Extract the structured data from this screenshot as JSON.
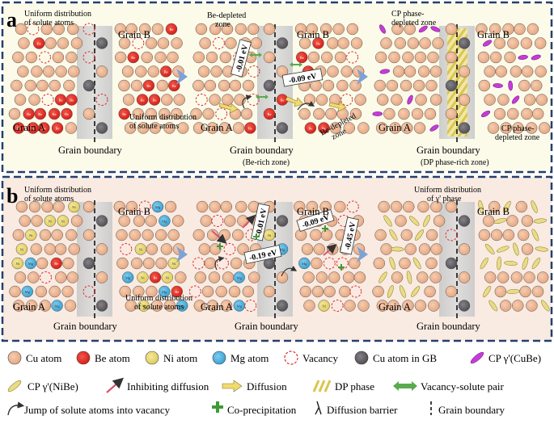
{
  "panel_a": {
    "label": "a",
    "s1": {
      "title": "Uniform distribution\nof solute atoms",
      "grain_a": "Grain A",
      "grain_b": "Grain B",
      "gb": "Grain boundary",
      "note": "Uniform distribution\nof solute atoms"
    },
    "s2": {
      "zone_top": "Be-depleted\nzone",
      "grain_a": "Grain A",
      "grain_b": "Grain B",
      "gb": "Grain boundary",
      "gb_sub": "(Be-rich zone)",
      "zone_right": "Be-depleted\nzone",
      "energy1": "-0.01 eV",
      "energy2": "-0.09 eV"
    },
    "s3": {
      "zone_top": "CP phase-\ndepleted zone",
      "grain_a": "Grain A",
      "grain_b": "Grain B",
      "gb": "Grain boundary",
      "gb_sub": "(DP phase-rich zone)",
      "zone_right": "CP phase-\ndepleted zone"
    }
  },
  "panel_b": {
    "label": "b",
    "s1": {
      "title": "Uniform distribution\nof solute atoms",
      "grain_a": "Grain A",
      "grain_b": "Grain B",
      "gb": "Grain boundary",
      "note": "Uniform distribution\nof solute atoms"
    },
    "s2": {
      "grain_a": "Grain A",
      "grain_b": "Grain B",
      "gb": "Grain boundary",
      "energy1": "-0.01 eV",
      "energy2": "-0.19 eV",
      "energy3": "-0.09 eV",
      "energy4": "-0.45 eV"
    },
    "s3": {
      "title": "Uniform distribution\nof γ' phase",
      "grain_a": "Grain A",
      "grain_b": "Grain B",
      "gb": "Grain boundary"
    }
  },
  "atom_labels": {
    "be": "Be",
    "ni": "Ni",
    "mg": "Mg",
    "cu": "Cu"
  },
  "legend": {
    "cu_atom": "Cu atom",
    "be_atom": "Be atom",
    "ni_atom": "Ni atom",
    "mg_atom": "Mg atom",
    "vacancy": "Vacancy",
    "cu_gb": "Cu atom in GB",
    "cp_cube": "CP γ'(CuBe)",
    "cp_nibe": "CP γ'(NiBe)",
    "inhibit": "Inhibiting diffusion",
    "diffusion": "Diffusion",
    "dp_phase": "DP phase",
    "vac_pair": "Vacancy-solute pair",
    "jump": "Jump of solute atoms into vacancy",
    "coprec": "Co-precipitation",
    "barrier": "Diffusion barrier",
    "gb": "Grain boundary"
  },
  "colors": {
    "cu": "#EDB592",
    "be": "#E8201E",
    "ni": "#ECD96A",
    "mg": "#4BB3E0",
    "gbatom": "#5E5C5E",
    "cube": "#C83BD8",
    "nibe": "#E9DC86",
    "vacancy": "#E0282A",
    "panelA_bg": "#FCFBEA",
    "panelB_bg": "#F9EBE2",
    "border": "#24406E",
    "arrow": "#7EA2D6"
  }
}
